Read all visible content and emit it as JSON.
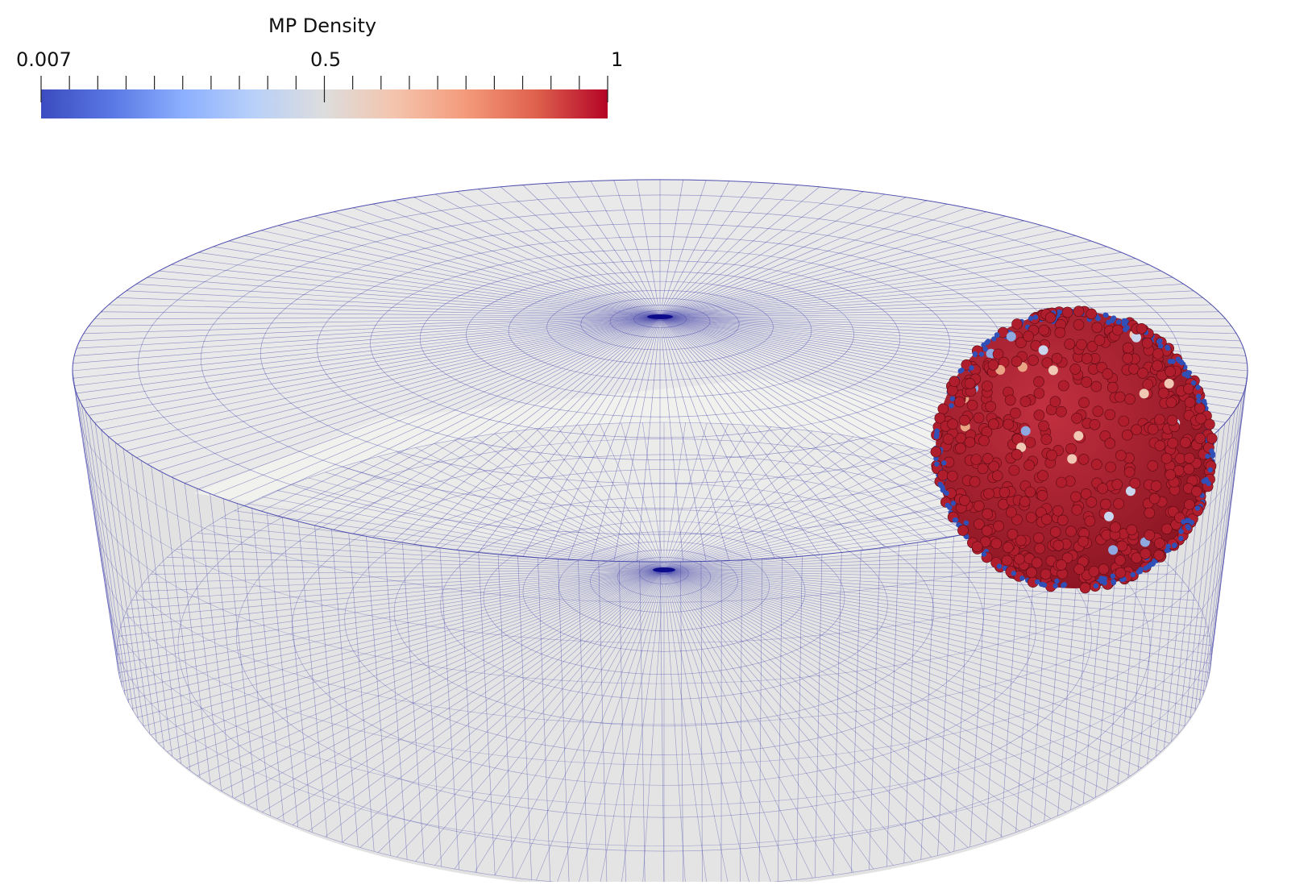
{
  "legend": {
    "title": "MP Density",
    "min_label": "0.007",
    "mid_label": "0.5",
    "max_label": "1",
    "range": [
      0.007,
      1
    ],
    "colormap": [
      "#3b4cc0",
      "#5a78e4",
      "#8caffe",
      "#b8d0f9",
      "#dddddd",
      "#f4c4ad",
      "#f49a7b",
      "#de604d",
      "#b40426"
    ]
  },
  "scene": {
    "mesh_line_color": "#3a3aa8",
    "surface_color": "#e4e4e4",
    "particle_high_color": "#b01e2e",
    "particle_low_color": "#3050b8"
  }
}
